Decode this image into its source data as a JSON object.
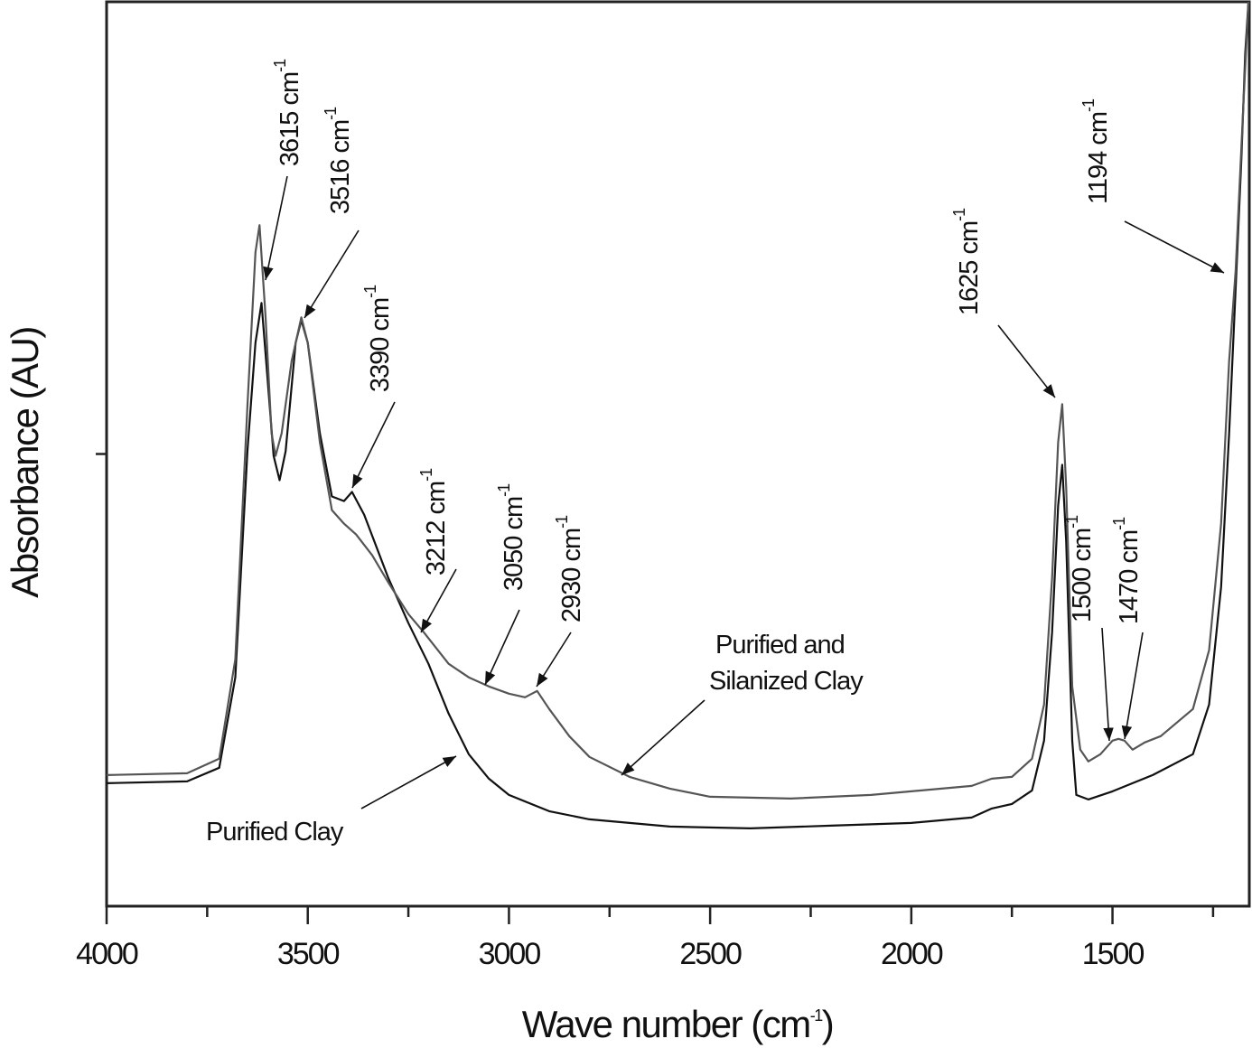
{
  "chart_data": {
    "type": "line",
    "title": "",
    "xlabel": "Wave number (cm",
    "xlabel_sup": "-1",
    "xlabel_close": ")",
    "ylabel": "Absorbance (AU)",
    "xlim": [
      4000,
      1160
    ],
    "x_reversed": true,
    "ylim": [
      0,
      1
    ],
    "y_ticks_unlabeled": [
      0.5
    ],
    "x_ticks": [
      4000,
      3500,
      3000,
      2500,
      2000,
      1500
    ],
    "x_tick_labels": [
      "4000",
      "3500",
      "3000",
      "2500",
      "2000",
      "1500"
    ],
    "x_minor_ticks": [
      3750,
      3250,
      2750,
      2250,
      1750,
      1250
    ],
    "grid": false,
    "colors": {
      "purified": "#111111",
      "silanized": "#555555",
      "axis": "#222222"
    },
    "series": [
      {
        "name": "Purified Clay",
        "x": [
          4000,
          3800,
          3720,
          3680,
          3650,
          3630,
          3615,
          3600,
          3585,
          3570,
          3555,
          3530,
          3516,
          3500,
          3470,
          3440,
          3410,
          3390,
          3360,
          3300,
          3250,
          3200,
          3150,
          3100,
          3050,
          3000,
          2900,
          2800,
          2600,
          2400,
          2200,
          2000,
          1850,
          1800,
          1750,
          1700,
          1670,
          1650,
          1635,
          1625,
          1615,
          1600,
          1590,
          1560,
          1500,
          1450,
          1400,
          1300,
          1260,
          1230,
          1210,
          1194,
          1180,
          1170,
          1162
        ],
        "y": [
          0.136,
          0.138,
          0.153,
          0.253,
          0.503,
          0.623,
          0.667,
          0.583,
          0.498,
          0.471,
          0.503,
          0.623,
          0.648,
          0.623,
          0.523,
          0.453,
          0.448,
          0.458,
          0.433,
          0.363,
          0.313,
          0.268,
          0.213,
          0.168,
          0.141,
          0.123,
          0.105,
          0.096,
          0.088,
          0.086,
          0.089,
          0.092,
          0.098,
          0.108,
          0.113,
          0.128,
          0.183,
          0.303,
          0.443,
          0.488,
          0.403,
          0.183,
          0.123,
          0.118,
          0.127,
          0.136,
          0.145,
          0.168,
          0.223,
          0.353,
          0.523,
          0.683,
          0.823,
          0.943,
          1.0
        ]
      },
      {
        "name": "Purified and Silanized Clay",
        "x": [
          4000,
          3800,
          3720,
          3680,
          3650,
          3630,
          3620,
          3605,
          3590,
          3580,
          3565,
          3540,
          3516,
          3500,
          3470,
          3440,
          3410,
          3380,
          3340,
          3300,
          3250,
          3212,
          3150,
          3100,
          3050,
          3000,
          2960,
          2930,
          2900,
          2850,
          2800,
          2700,
          2600,
          2500,
          2300,
          2100,
          2000,
          1850,
          1800,
          1750,
          1700,
          1670,
          1650,
          1635,
          1625,
          1615,
          1600,
          1580,
          1560,
          1530,
          1500,
          1485,
          1470,
          1450,
          1420,
          1380,
          1300,
          1260,
          1230,
          1210,
          1194,
          1175,
          1162
        ],
        "y": [
          0.145,
          0.147,
          0.163,
          0.273,
          0.553,
          0.723,
          0.753,
          0.653,
          0.523,
          0.498,
          0.523,
          0.603,
          0.651,
          0.623,
          0.513,
          0.438,
          0.423,
          0.411,
          0.388,
          0.358,
          0.323,
          0.303,
          0.268,
          0.253,
          0.243,
          0.235,
          0.231,
          0.238,
          0.218,
          0.188,
          0.165,
          0.143,
          0.13,
          0.121,
          0.119,
          0.123,
          0.127,
          0.133,
          0.141,
          0.143,
          0.163,
          0.223,
          0.363,
          0.513,
          0.555,
          0.463,
          0.243,
          0.173,
          0.16,
          0.168,
          0.183,
          0.185,
          0.183,
          0.173,
          0.181,
          0.188,
          0.218,
          0.283,
          0.423,
          0.603,
          0.703,
          0.883,
          1.0
        ]
      }
    ],
    "annotations": [
      {
        "text": "3615 cm",
        "sup": "-1"
      },
      {
        "text": "3516 cm",
        "sup": "-1"
      },
      {
        "text": "3390 cm",
        "sup": "-1"
      },
      {
        "text": "3212 cm",
        "sup": "-1"
      },
      {
        "text": "3050 cm",
        "sup": "-1"
      },
      {
        "text": "2930 cm",
        "sup": "-1"
      },
      {
        "text": "1625 cm",
        "sup": "-1"
      },
      {
        "text": "1500 cm",
        "sup": "-1"
      },
      {
        "text": "1470 cm",
        "sup": "-1"
      },
      {
        "text": "1194 cm",
        "sup": "-1"
      }
    ],
    "series_labels": [
      {
        "lines": [
          "Purified and",
          "Silanized Clay"
        ]
      },
      {
        "lines": [
          "Purified Clay"
        ]
      }
    ]
  }
}
